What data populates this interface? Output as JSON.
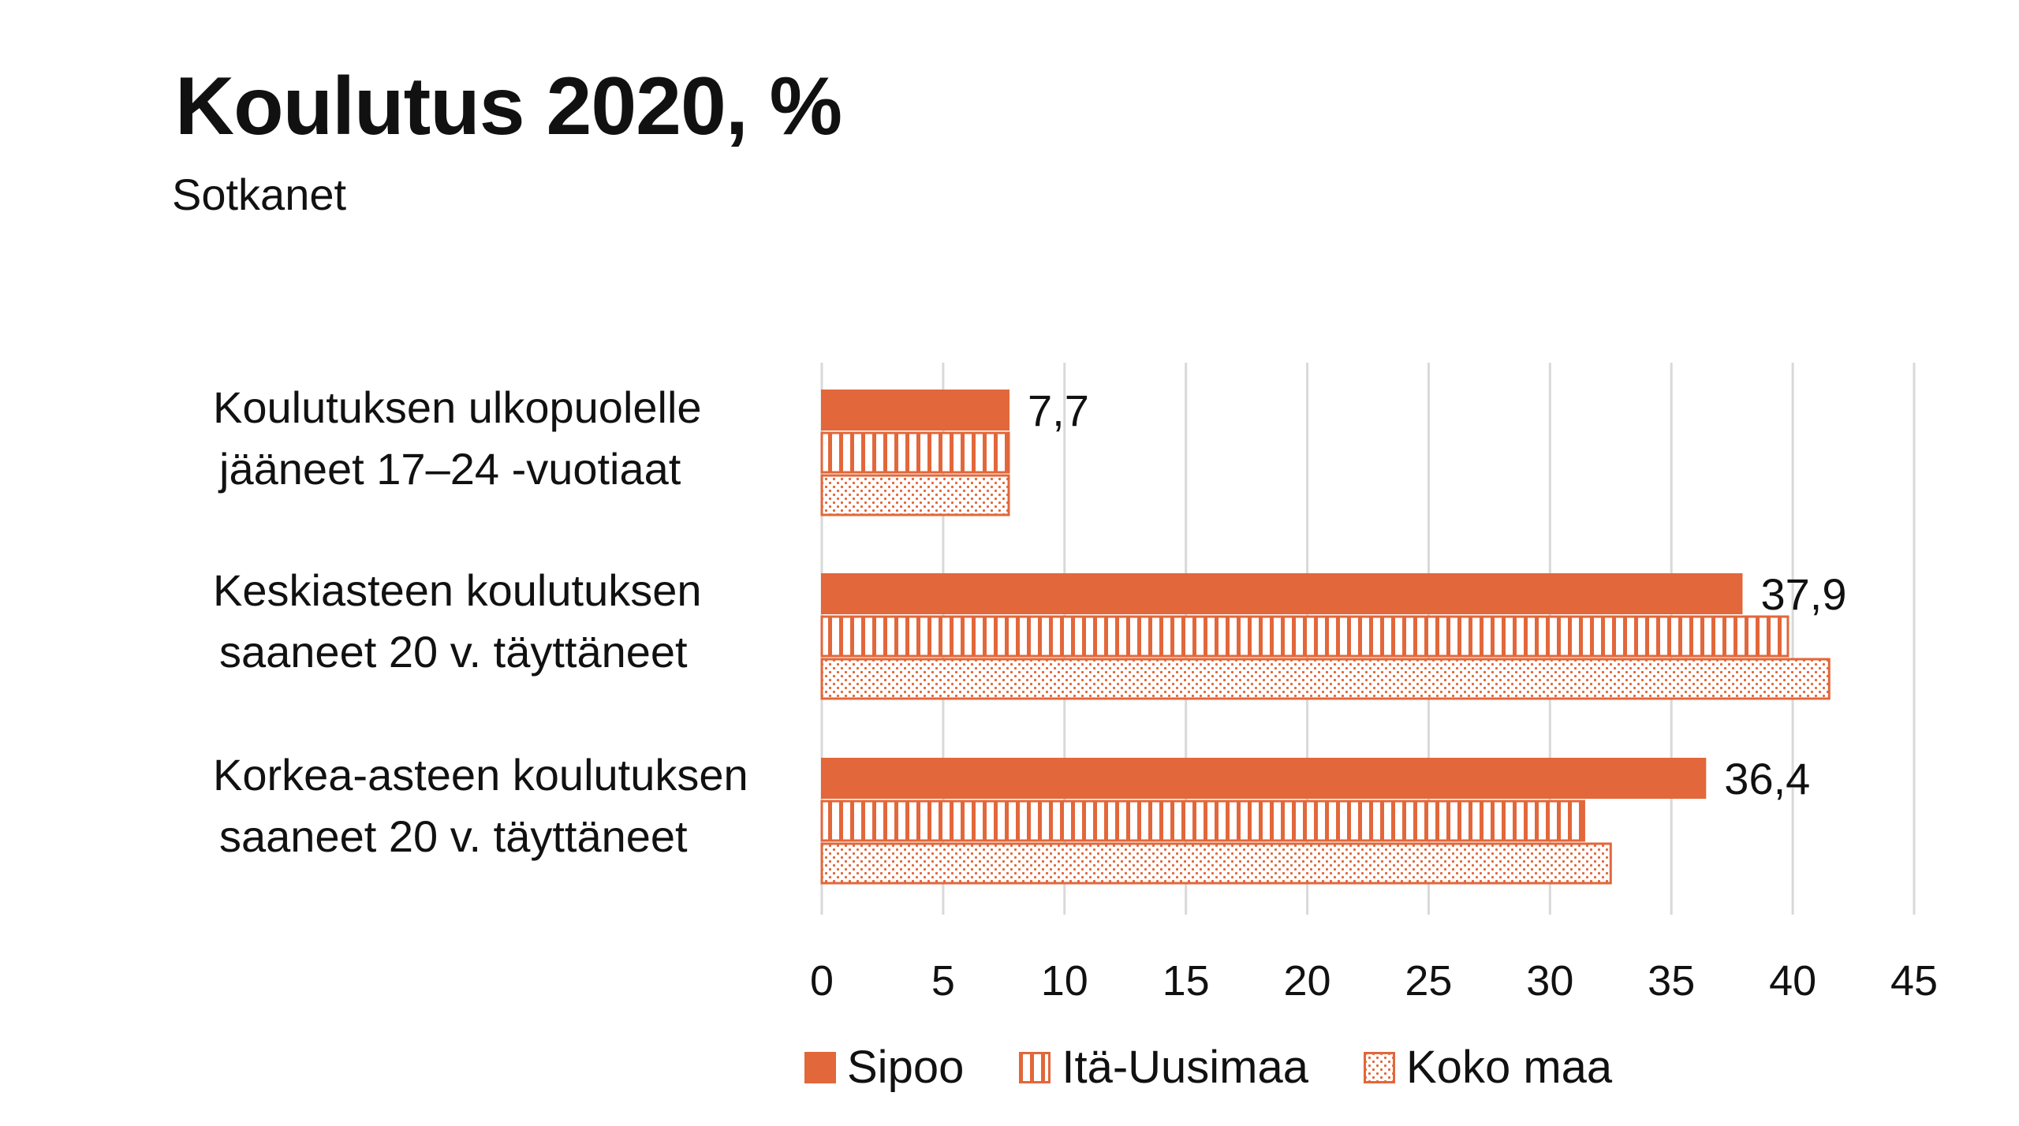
{
  "title": "Koulutus 2020, %",
  "subtitle": "Sotkanet",
  "colors": {
    "accent": "#E2673A",
    "grid": "#D9D9D9",
    "text": "#111111"
  },
  "chart_data": {
    "type": "bar",
    "orientation": "horizontal",
    "categories": [
      [
        "Koulutuksen ulkopuolelle",
        "jääneet 17–24 -vuotiaat"
      ],
      [
        "Keskiasteen koulutuksen",
        "saaneet 20 v. täyttäneet"
      ],
      [
        "Korkea-asteen koulutuksen",
        "saaneet 20 v. täyttäneet"
      ]
    ],
    "series": [
      {
        "name": "Sipoo",
        "values": [
          7.7,
          37.9,
          36.4
        ],
        "pattern": "solid",
        "data_labels": [
          "7,7",
          "37,9",
          "36,4"
        ]
      },
      {
        "name": "Itä-Uusimaa",
        "values": [
          7.7,
          39.8,
          31.4
        ],
        "pattern": "vertical-stripes"
      },
      {
        "name": "Koko maa",
        "values": [
          7.7,
          41.5,
          32.5
        ],
        "pattern": "dots"
      }
    ],
    "xlim": [
      0,
      45
    ],
    "x_ticks": [
      "0",
      "5",
      "10",
      "15",
      "20",
      "25",
      "30",
      "35",
      "40",
      "45"
    ],
    "grid": "vertical",
    "legend_position": "bottom"
  }
}
